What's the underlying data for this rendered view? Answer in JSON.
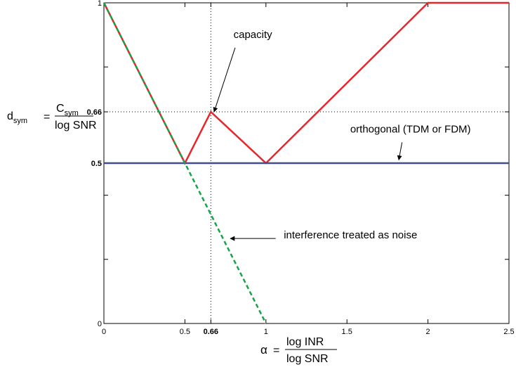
{
  "chart_data": {
    "type": "line",
    "xlim": [
      0,
      2.5
    ],
    "ylim": [
      0,
      1
    ],
    "x_ticks": [
      {
        "value": 0,
        "label": "0"
      },
      {
        "value": 0.5,
        "label": "0.5"
      },
      {
        "value": 0.66,
        "label": "0.66",
        "bold": true
      },
      {
        "value": 1,
        "label": "1"
      },
      {
        "value": 1.5,
        "label": "1.5"
      },
      {
        "value": 2,
        "label": "2"
      },
      {
        "value": 2.5,
        "label": "2.5"
      }
    ],
    "y_ticks": [
      {
        "value": 0,
        "label": "0"
      },
      {
        "value": 0.5,
        "label": "0.5",
        "bold": true
      },
      {
        "value": 0.66,
        "label": "0.66",
        "bold": true
      },
      {
        "value": 1,
        "label": "1"
      }
    ],
    "minor_y_ticks": [
      0.2,
      0.4,
      0.8
    ],
    "minor_x_ticks": [],
    "reference_lines": [
      {
        "orientation": "vertical",
        "value": 0.66
      },
      {
        "orientation": "horizontal",
        "value": 0.66
      }
    ],
    "series": [
      {
        "x": [
          0,
          0.5,
          0.66,
          1,
          2,
          2.5
        ],
        "y": [
          1,
          0.5,
          0.66,
          0.5,
          1,
          1
        ],
        "color": "#e8262b",
        "dash": "solid"
      },
      {
        "x": [
          0,
          2.5
        ],
        "y": [
          0.5,
          0.5
        ],
        "color": "#3f4f8c",
        "dash": "solid"
      },
      {
        "x": [
          0,
          1
        ],
        "y": [
          1,
          0
        ],
        "color": "#17a34a",
        "dash": "dashed"
      }
    ],
    "annotations": [
      {
        "text": "capacity",
        "text_pos": [
          0.8,
          0.89
        ],
        "arrow_from": [
          0.81,
          0.86
        ],
        "arrow_to": [
          0.68,
          0.66
        ]
      },
      {
        "text": "orthogonal (TDM or FDM)",
        "text_pos": [
          1.52,
          0.595
        ],
        "arrow_from": [
          1.84,
          0.565
        ],
        "arrow_to": [
          1.82,
          0.51
        ]
      },
      {
        "text": "interference treated as noise",
        "text_pos": [
          1.11,
          0.265
        ],
        "arrow_from": [
          1.06,
          0.265
        ],
        "arrow_to": [
          0.78,
          0.265
        ]
      }
    ],
    "ylabel": {
      "lhs": "d",
      "lhs_sub": "sym",
      "num": "C",
      "num_sub": "sym",
      "den": "log SNR"
    },
    "xlabel": {
      "lhs": "α",
      "num": "log INR",
      "den": "log SNR"
    }
  }
}
